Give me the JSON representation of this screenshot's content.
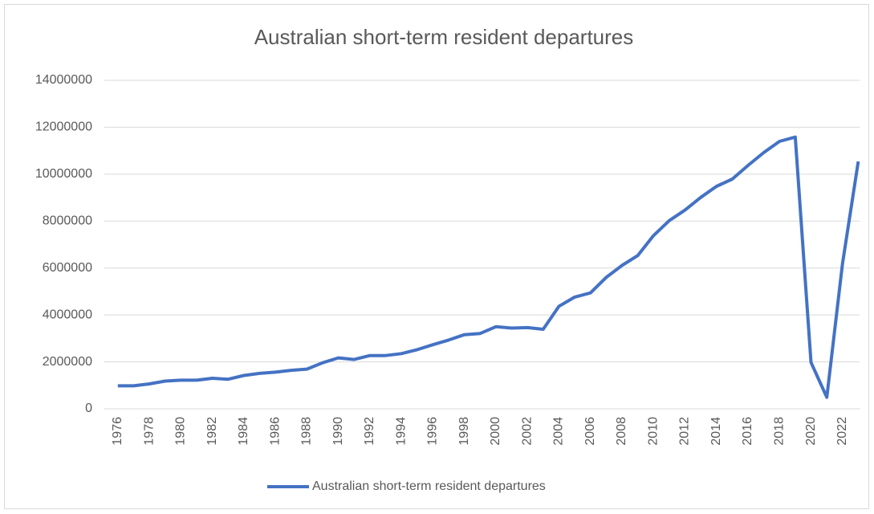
{
  "chart_data": {
    "type": "line",
    "title": "Australian short-term resident departures",
    "categories": [
      "1976",
      null,
      "1978",
      null,
      "1980",
      null,
      "1982",
      null,
      "1984",
      null,
      "1986",
      null,
      "1988",
      null,
      "1990",
      null,
      "1992",
      null,
      "1994",
      null,
      "1996",
      null,
      "1998",
      null,
      "2000",
      null,
      "2002",
      null,
      "2004",
      null,
      "2006",
      null,
      "2008",
      null,
      "2010",
      null,
      "2012",
      null,
      "2014",
      null,
      "2016",
      null,
      "2018",
      null,
      "2020",
      null,
      "2022",
      null
    ],
    "series": [
      {
        "name": "Australian short-term resident departures",
        "color": "#4472c4",
        "values": [
          980000,
          980000,
          1060000,
          1180000,
          1220000,
          1220000,
          1300000,
          1260000,
          1420000,
          1510000,
          1560000,
          1640000,
          1690000,
          1960000,
          2170000,
          2100000,
          2270000,
          2270000,
          2350000,
          2520000,
          2730000,
          2930000,
          3160000,
          3210000,
          3500000,
          3440000,
          3460000,
          3390000,
          4370000,
          4760000,
          4940000,
          5600000,
          6110000,
          6530000,
          7380000,
          8020000,
          8470000,
          9010000,
          9480000,
          9790000,
          10370000,
          10920000,
          11400000,
          11580000,
          1980000,
          490000,
          6200000,
          10540000
        ]
      }
    ],
    "ylim": [
      0,
      14000000
    ],
    "yticks": [
      0,
      2000000,
      4000000,
      6000000,
      8000000,
      10000000,
      12000000,
      14000000
    ],
    "grid": true,
    "legend": "bottom"
  }
}
